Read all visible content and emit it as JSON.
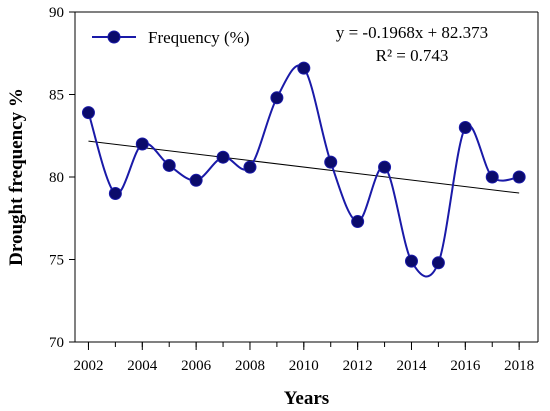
{
  "chart_data": {
    "type": "line",
    "title": "",
    "xlabel": "Years",
    "ylabel": "Drought frequency %",
    "xlim": [
      2001.5,
      2018.7
    ],
    "ylim": [
      70,
      90
    ],
    "x_ticks": [
      2002,
      2004,
      2006,
      2008,
      2010,
      2012,
      2014,
      2016,
      2018
    ],
    "y_ticks": [
      70,
      75,
      80,
      85,
      90
    ],
    "grid": false,
    "legend_position": "top-left",
    "series": [
      {
        "name": "Frequency (%)",
        "color": "#1a1aa8",
        "marker_color": "#0b0b6b",
        "x": [
          2002,
          2003,
          2004,
          2005,
          2006,
          2007,
          2008,
          2009,
          2010,
          2011,
          2012,
          2013,
          2014,
          2015,
          2016,
          2017,
          2018
        ],
        "y": [
          83.9,
          79.0,
          82.0,
          80.7,
          79.8,
          81.2,
          80.6,
          84.8,
          86.6,
          80.9,
          77.3,
          80.6,
          74.9,
          74.8,
          83.0,
          80.0,
          80.0
        ]
      }
    ],
    "trendline": {
      "slope": -0.1968,
      "intercept": 82.373,
      "color": "#000000",
      "equation": "y = -0.1968x + 82.373",
      "r_squared": "R² = 0.743"
    }
  }
}
